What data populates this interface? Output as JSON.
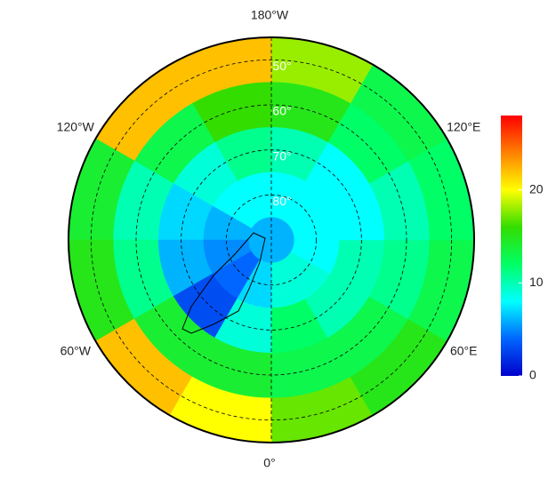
{
  "chart_data": {
    "type": "polar-map",
    "lon_labels": [
      {
        "value": 180,
        "label": "180°W"
      },
      {
        "value": -120,
        "label": "120°W"
      },
      {
        "value": 120,
        "label": "120°E"
      },
      {
        "value": -60,
        "label": "60°W"
      },
      {
        "value": 60,
        "label": "60°E"
      },
      {
        "value": 0,
        "label": "0°"
      }
    ],
    "lat_labels": [
      {
        "value": 50,
        "label": "50°"
      },
      {
        "value": 60,
        "label": "60°"
      },
      {
        "value": 70,
        "label": "70°"
      },
      {
        "value": 80,
        "label": "80°"
      }
    ],
    "lat_edges": [
      45,
      55,
      65,
      75,
      85,
      90
    ],
    "lon_edges": [
      0,
      30,
      60,
      90,
      120,
      150,
      180,
      210,
      240,
      270,
      300,
      330,
      360
    ],
    "values": [
      [
        17,
        15,
        13,
        12,
        13,
        18,
        22,
        22,
        14,
        15,
        22,
        20
      ],
      [
        13,
        13,
        11,
        10,
        12,
        15,
        16,
        13,
        10,
        11,
        14,
        14
      ],
      [
        12,
        10,
        10,
        8,
        8,
        10,
        11,
        9,
        7,
        6,
        3,
        9
      ],
      [
        9,
        9,
        8,
        8,
        8,
        8,
        8,
        8,
        6,
        5,
        4,
        7
      ],
      [
        6,
        6,
        6,
        6,
        6,
        6,
        6,
        6,
        6,
        6,
        6,
        6
      ]
    ],
    "colormap": [
      "#0000cc",
      "#0066ff",
      "#00ffff",
      "#00ff66",
      "#33dd00",
      "#ffff00",
      "#ff8000",
      "#ff0000"
    ],
    "clim": [
      0,
      28
    ],
    "cticks": [
      0,
      10,
      20
    ]
  }
}
